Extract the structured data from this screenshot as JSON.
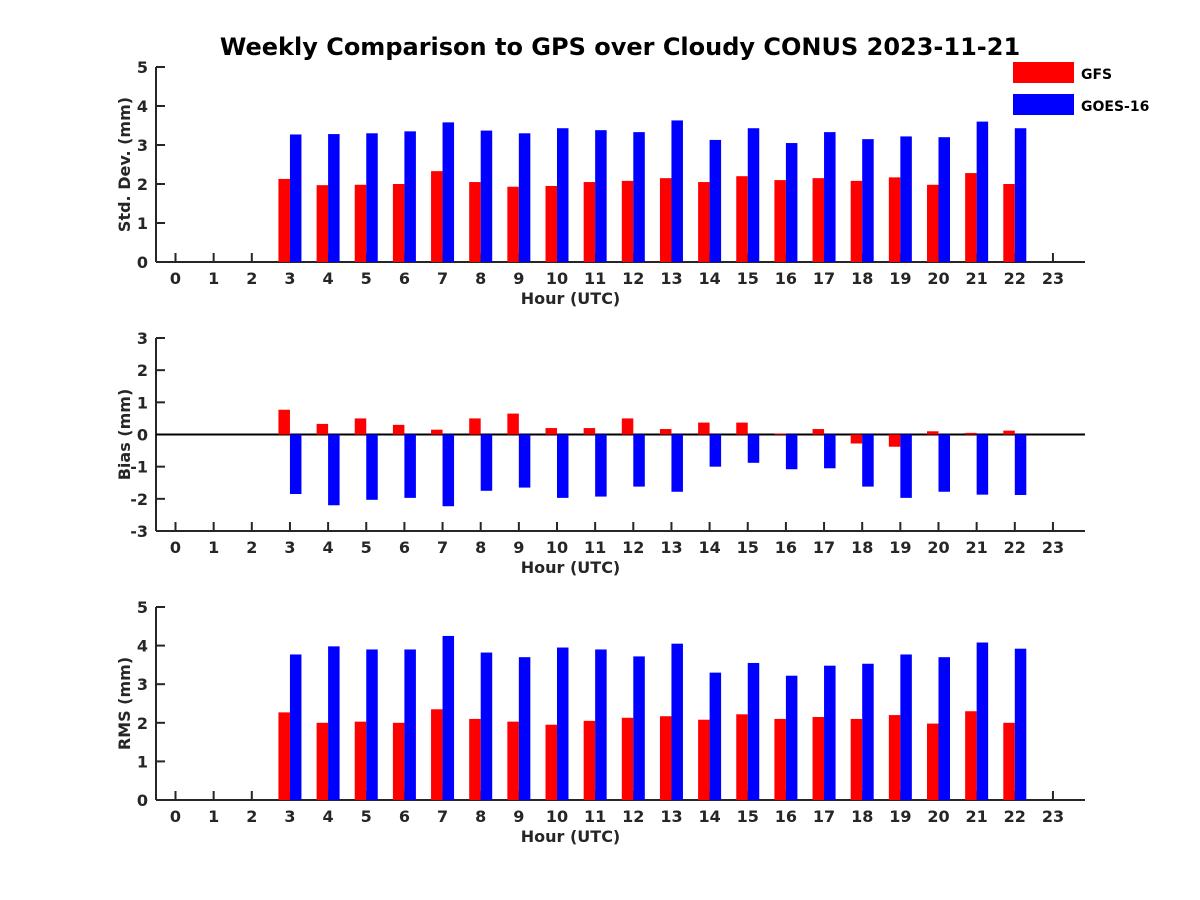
{
  "title": "Weekly Comparison to GPS over Cloudy CONUS 2023-11-21",
  "legend": {
    "placement": "top-right",
    "items": [
      {
        "label": "GFS",
        "color": "#ff0000"
      },
      {
        "label": "GOES-16",
        "color": "#0000ff"
      }
    ]
  },
  "chart_data": [
    {
      "type": "bar",
      "title": "",
      "xlabel": "Hour (UTC)",
      "ylabel": "Std. Dev. (mm)",
      "ylim": [
        0,
        5
      ],
      "yticks": [
        0,
        1,
        2,
        3,
        4,
        5
      ],
      "categories": [
        "0",
        "1",
        "2",
        "3",
        "4",
        "5",
        "6",
        "7",
        "8",
        "9",
        "10",
        "11",
        "12",
        "13",
        "14",
        "15",
        "16",
        "17",
        "18",
        "19",
        "20",
        "21",
        "22",
        "23"
      ],
      "series": [
        {
          "name": "GFS",
          "color": "#ff0000",
          "values": [
            null,
            null,
            null,
            2.13,
            1.97,
            1.98,
            2.0,
            2.33,
            2.05,
            1.93,
            1.95,
            2.05,
            2.08,
            2.15,
            2.05,
            2.2,
            2.1,
            2.15,
            2.08,
            2.17,
            1.98,
            2.28,
            2.0,
            null
          ]
        },
        {
          "name": "GOES-16",
          "color": "#0000ff",
          "values": [
            null,
            null,
            null,
            3.27,
            3.28,
            3.3,
            3.35,
            3.58,
            3.37,
            3.3,
            3.43,
            3.38,
            3.33,
            3.63,
            3.13,
            3.43,
            3.05,
            3.33,
            3.15,
            3.22,
            3.2,
            3.6,
            3.43,
            null
          ]
        }
      ],
      "grid": false
    },
    {
      "type": "bar",
      "title": "",
      "xlabel": "Hour (UTC)",
      "ylabel": "Bias (mm)",
      "ylim": [
        -3,
        3
      ],
      "yticks": [
        -3,
        -2,
        -1,
        0,
        1,
        2,
        3
      ],
      "categories": [
        "0",
        "1",
        "2",
        "3",
        "4",
        "5",
        "6",
        "7",
        "8",
        "9",
        "10",
        "11",
        "12",
        "13",
        "14",
        "15",
        "16",
        "17",
        "18",
        "19",
        "20",
        "21",
        "22",
        "23"
      ],
      "series": [
        {
          "name": "GFS",
          "color": "#ff0000",
          "values": [
            null,
            null,
            null,
            0.77,
            0.33,
            0.5,
            0.3,
            0.15,
            0.5,
            0.65,
            0.2,
            0.2,
            0.5,
            0.17,
            0.37,
            0.37,
            0.03,
            0.17,
            -0.28,
            -0.38,
            0.1,
            0.05,
            0.12,
            null
          ]
        },
        {
          "name": "GOES-16",
          "color": "#0000ff",
          "values": [
            null,
            null,
            null,
            -1.85,
            -2.2,
            -2.03,
            -1.97,
            -2.23,
            -1.75,
            -1.65,
            -1.97,
            -1.93,
            -1.62,
            -1.78,
            -1.0,
            -0.88,
            -1.08,
            -1.05,
            -1.62,
            -1.97,
            -1.78,
            -1.87,
            -1.88,
            null
          ]
        }
      ],
      "grid": false
    },
    {
      "type": "bar",
      "title": "",
      "xlabel": "Hour (UTC)",
      "ylabel": "RMS (mm)",
      "ylim": [
        0,
        5
      ],
      "yticks": [
        0,
        1,
        2,
        3,
        4,
        5
      ],
      "categories": [
        "0",
        "1",
        "2",
        "3",
        "4",
        "5",
        "6",
        "7",
        "8",
        "9",
        "10",
        "11",
        "12",
        "13",
        "14",
        "15",
        "16",
        "17",
        "18",
        "19",
        "20",
        "21",
        "22",
        "23"
      ],
      "series": [
        {
          "name": "GFS",
          "color": "#ff0000",
          "values": [
            null,
            null,
            null,
            2.27,
            2.0,
            2.03,
            2.0,
            2.35,
            2.1,
            2.03,
            1.95,
            2.05,
            2.13,
            2.17,
            2.08,
            2.22,
            2.1,
            2.15,
            2.1,
            2.2,
            1.98,
            2.3,
            2.0,
            null
          ]
        },
        {
          "name": "GOES-16",
          "color": "#0000ff",
          "values": [
            null,
            null,
            null,
            3.77,
            3.98,
            3.9,
            3.9,
            4.25,
            3.82,
            3.7,
            3.95,
            3.9,
            3.72,
            4.05,
            3.3,
            3.55,
            3.22,
            3.48,
            3.53,
            3.77,
            3.7,
            4.08,
            3.92,
            null
          ]
        }
      ],
      "grid": false
    }
  ]
}
